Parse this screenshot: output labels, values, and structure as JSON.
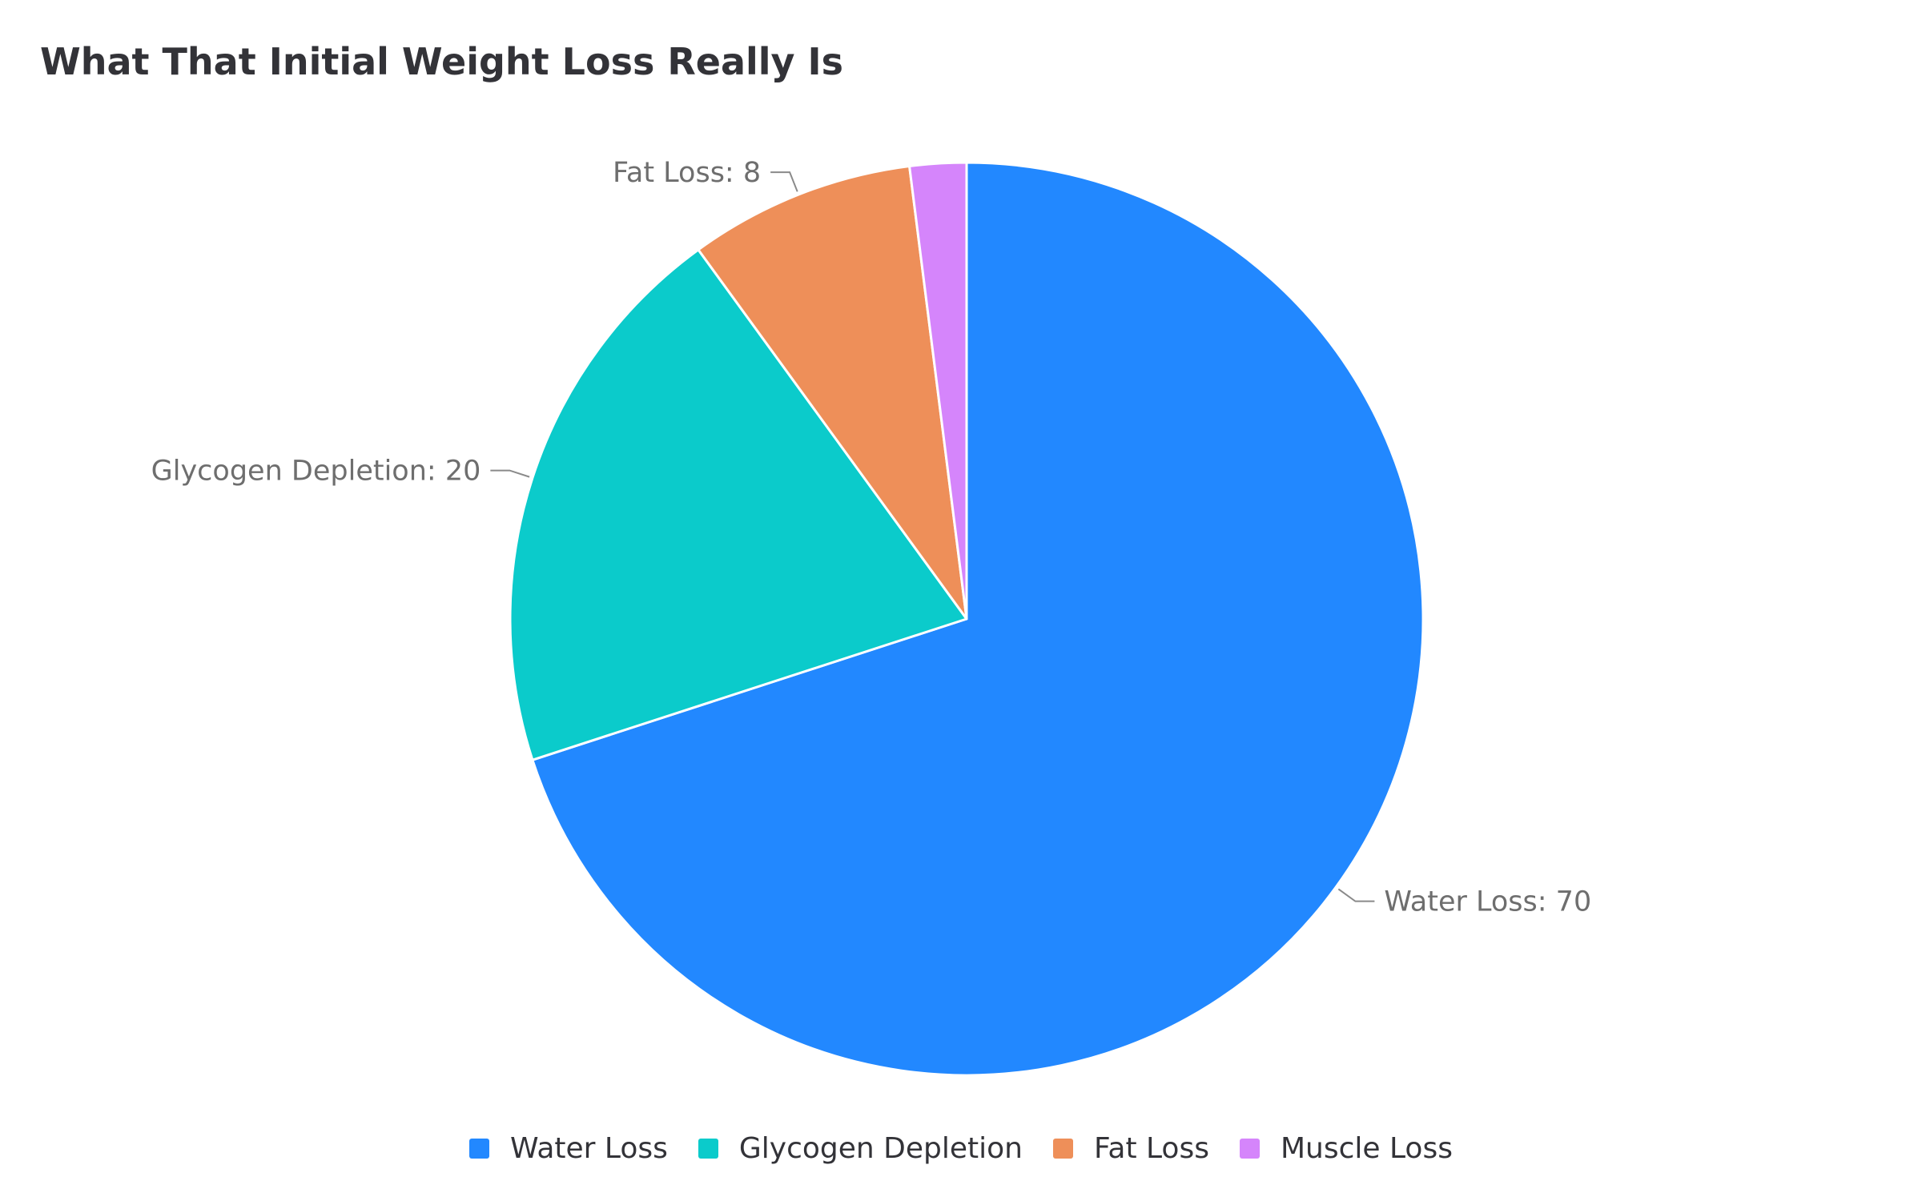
{
  "chart_data": {
    "type": "pie",
    "title": "What That Initial Weight Loss Really Is",
    "categories": [
      "Water Loss",
      "Glycogen Depletion",
      "Fat Loss",
      "Muscle Loss"
    ],
    "values": [
      70,
      20,
      8,
      2
    ],
    "data_labels": [
      "Water Loss: 70",
      "Glycogen Depletion: 20",
      "Fat Loss: 8",
      ""
    ],
    "colors": [
      "#2288ff",
      "#0bcbcb",
      "#ee8f59",
      "#d585fb"
    ],
    "legend": "bottom",
    "start_angle": "top",
    "direction": "clockwise"
  }
}
